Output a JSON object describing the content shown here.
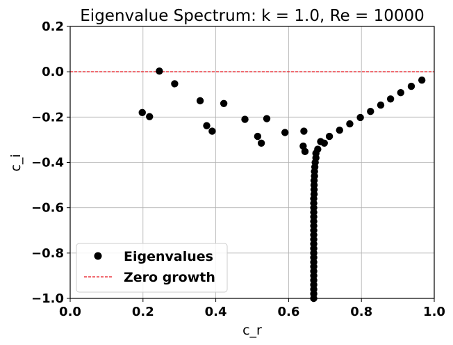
{
  "chart_data": {
    "type": "scatter",
    "title": "Eigenvalue Spectrum: k = 1.0, Re = 10000",
    "xlabel": "c_r",
    "ylabel": "c_i",
    "xlim": [
      0.0,
      1.0
    ],
    "ylim": [
      -1.0,
      0.2
    ],
    "xticks": [
      "0.0",
      "0.2",
      "0.4",
      "0.6",
      "0.8",
      "1.0"
    ],
    "yticks": [
      "0.2",
      "0.0",
      "−0.2",
      "−0.4",
      "−0.6",
      "−0.8",
      "−1.0"
    ],
    "grid": true,
    "legend_position": "lower-left",
    "series": [
      {
        "name": "Eigenvalues",
        "color": "#000000",
        "marker": "circle",
        "points": [
          [
            0.245,
            0.003
          ],
          [
            0.287,
            -0.053
          ],
          [
            0.198,
            -0.18
          ],
          [
            0.218,
            -0.198
          ],
          [
            0.357,
            -0.128
          ],
          [
            0.375,
            -0.238
          ],
          [
            0.39,
            -0.262
          ],
          [
            0.422,
            -0.14
          ],
          [
            0.48,
            -0.21
          ],
          [
            0.515,
            -0.285
          ],
          [
            0.525,
            -0.315
          ],
          [
            0.54,
            -0.207
          ],
          [
            0.59,
            -0.268
          ],
          [
            0.642,
            -0.262
          ],
          [
            0.64,
            -0.328
          ],
          [
            0.645,
            -0.352
          ],
          [
            0.68,
            -0.342
          ],
          [
            0.675,
            -0.36
          ],
          [
            0.688,
            -0.308
          ],
          [
            0.698,
            -0.315
          ],
          [
            0.712,
            -0.285
          ],
          [
            0.74,
            -0.258
          ],
          [
            0.768,
            -0.23
          ],
          [
            0.797,
            -0.202
          ],
          [
            0.825,
            -0.175
          ],
          [
            0.853,
            -0.147
          ],
          [
            0.88,
            -0.12
          ],
          [
            0.908,
            -0.092
          ],
          [
            0.937,
            -0.064
          ],
          [
            0.966,
            -0.037
          ],
          [
            0.675,
            -0.38
          ],
          [
            0.673,
            -0.4
          ],
          [
            0.672,
            -0.42
          ],
          [
            0.671,
            -0.44
          ],
          [
            0.671,
            -0.46
          ],
          [
            0.67,
            -0.48
          ],
          [
            0.67,
            -0.5
          ],
          [
            0.67,
            -0.52
          ],
          [
            0.67,
            -0.54
          ],
          [
            0.669,
            -0.56
          ],
          [
            0.669,
            -0.58
          ],
          [
            0.669,
            -0.6
          ],
          [
            0.669,
            -0.62
          ],
          [
            0.669,
            -0.64
          ],
          [
            0.669,
            -0.66
          ],
          [
            0.669,
            -0.68
          ],
          [
            0.669,
            -0.7
          ],
          [
            0.669,
            -0.72
          ],
          [
            0.669,
            -0.74
          ],
          [
            0.669,
            -0.76
          ],
          [
            0.669,
            -0.78
          ],
          [
            0.669,
            -0.8
          ],
          [
            0.669,
            -0.82
          ],
          [
            0.669,
            -0.84
          ],
          [
            0.669,
            -0.86
          ],
          [
            0.669,
            -0.88
          ],
          [
            0.669,
            -0.9
          ],
          [
            0.669,
            -0.92
          ],
          [
            0.669,
            -0.94
          ],
          [
            0.669,
            -0.96
          ],
          [
            0.669,
            -0.98
          ],
          [
            0.669,
            -1.0
          ]
        ]
      },
      {
        "name": "Zero growth",
        "color": "#e8101a",
        "line_style": "dashed",
        "y": 0.0
      }
    ]
  }
}
